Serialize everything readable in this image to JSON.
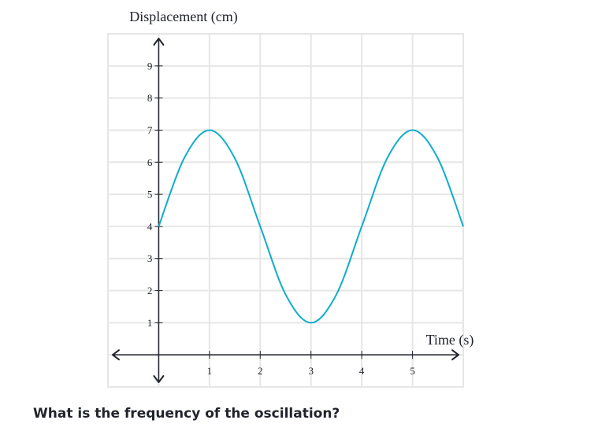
{
  "question": "What is the frequency of the oscillation?",
  "chart_data": {
    "type": "line",
    "ylabel": "Displacement (cm)",
    "xlabel": "Time (s)",
    "xlim": [
      -1,
      6
    ],
    "ylim": [
      -1,
      10
    ],
    "x_ticks": [
      "1",
      "2",
      "3",
      "4",
      "5"
    ],
    "y_ticks": [
      "1",
      "2",
      "3",
      "4",
      "5",
      "6",
      "7",
      "8",
      "9"
    ],
    "grid": true,
    "series": [
      {
        "color": "#11accd",
        "x": [
          0,
          0.5,
          1,
          1.5,
          2,
          2.5,
          3,
          3.5,
          4,
          4.5,
          5,
          5.5,
          6
        ],
        "y": [
          4,
          6.12,
          7,
          6.12,
          4,
          1.88,
          1,
          1.88,
          4,
          6.12,
          7,
          6.12,
          4
        ]
      }
    ]
  }
}
